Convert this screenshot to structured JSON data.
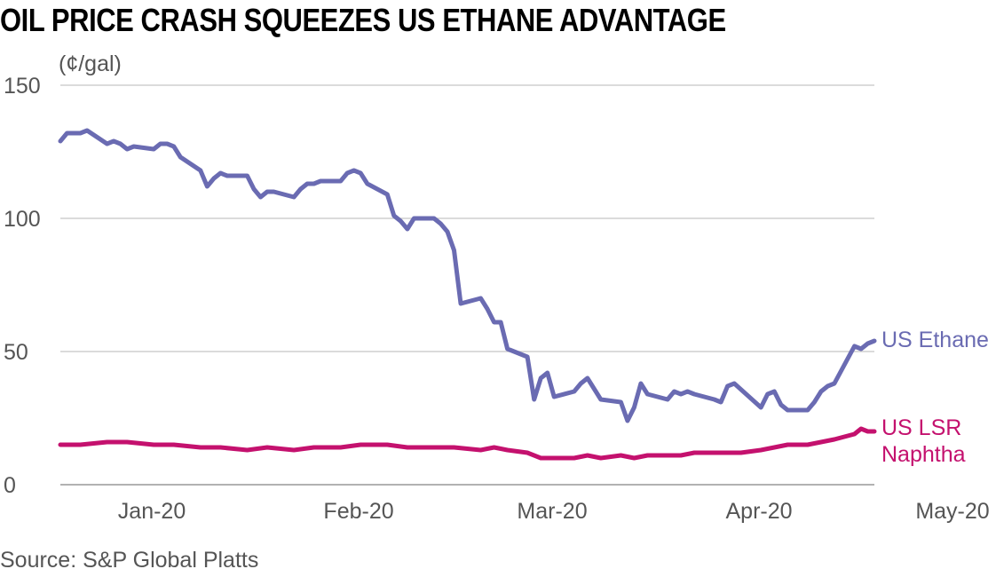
{
  "title": "OIL PRICE CRASH SQUEEZES US ETHANE ADVANTAGE",
  "unit_label": "(¢/gal)",
  "source": "Source: S&P Global Platts",
  "chart_data": {
    "type": "line",
    "title": "OIL PRICE CRASH SQUEEZES US ETHANE ADVANTAGE",
    "ylabel": "(¢/gal)",
    "xlabel": "",
    "ylim": [
      0,
      150
    ],
    "yticks": [
      0,
      50,
      100,
      150
    ],
    "xticks": [
      "Jan-20",
      "Feb-20",
      "Mar-20",
      "Apr-20",
      "May-20"
    ],
    "x_range": [
      "2019-12-30",
      "2020-04-30"
    ],
    "grid": true,
    "series": [
      {
        "name": "US Ethane",
        "color": "#6a6bb2",
        "x": [
          "2019-12-30",
          "2019-12-31",
          "2020-01-02",
          "2020-01-03",
          "2020-01-06",
          "2020-01-07",
          "2020-01-08",
          "2020-01-09",
          "2020-01-10",
          "2020-01-13",
          "2020-01-14",
          "2020-01-15",
          "2020-01-16",
          "2020-01-17",
          "2020-01-20",
          "2020-01-21",
          "2020-01-22",
          "2020-01-23",
          "2020-01-24",
          "2020-01-27",
          "2020-01-28",
          "2020-01-29",
          "2020-01-30",
          "2020-01-31",
          "2020-02-03",
          "2020-02-04",
          "2020-02-05",
          "2020-02-06",
          "2020-02-07",
          "2020-02-10",
          "2020-02-11",
          "2020-02-12",
          "2020-02-13",
          "2020-02-14",
          "2020-02-17",
          "2020-02-18",
          "2020-02-19",
          "2020-02-20",
          "2020-02-21",
          "2020-02-24",
          "2020-02-25",
          "2020-02-26",
          "2020-02-27",
          "2020-02-28",
          "2020-03-02",
          "2020-03-03",
          "2020-03-04",
          "2020-03-05",
          "2020-03-06",
          "2020-03-09",
          "2020-03-10",
          "2020-03-11",
          "2020-03-12",
          "2020-03-13",
          "2020-03-16",
          "2020-03-17",
          "2020-03-18",
          "2020-03-19",
          "2020-03-20",
          "2020-03-23",
          "2020-03-24",
          "2020-03-25",
          "2020-03-26",
          "2020-03-27",
          "2020-03-30",
          "2020-03-31",
          "2020-04-01",
          "2020-04-02",
          "2020-04-03",
          "2020-04-06",
          "2020-04-07",
          "2020-04-08",
          "2020-04-09",
          "2020-04-13",
          "2020-04-14",
          "2020-04-15",
          "2020-04-16",
          "2020-04-17",
          "2020-04-20",
          "2020-04-21",
          "2020-04-22",
          "2020-04-23",
          "2020-04-24",
          "2020-04-27",
          "2020-04-28",
          "2020-04-29",
          "2020-04-30"
        ],
        "values": [
          129,
          132,
          132,
          133,
          128,
          129,
          128,
          126,
          127,
          126,
          128,
          128,
          127,
          123,
          118,
          112,
          115,
          117,
          116,
          116,
          111,
          108,
          110,
          110,
          108,
          111,
          113,
          113,
          114,
          114,
          117,
          118,
          117,
          113,
          109,
          101,
          99,
          96,
          100,
          100,
          98,
          95,
          88,
          68,
          70,
          66,
          61,
          61,
          51,
          48,
          32,
          40,
          42,
          33,
          35,
          38,
          40,
          36,
          32,
          31,
          24,
          29,
          38,
          34,
          32,
          35,
          34,
          35,
          34,
          32,
          31,
          37,
          38,
          29,
          34,
          35,
          30,
          28,
          28,
          31,
          35,
          37,
          38,
          52,
          51,
          53,
          54
        ]
      },
      {
        "name": "US LSR Naphtha",
        "color": "#c4116e",
        "x": [
          "2019-12-30",
          "2020-01-02",
          "2020-01-06",
          "2020-01-09",
          "2020-01-13",
          "2020-01-16",
          "2020-01-20",
          "2020-01-23",
          "2020-01-27",
          "2020-01-30",
          "2020-02-03",
          "2020-02-06",
          "2020-02-10",
          "2020-02-13",
          "2020-02-17",
          "2020-02-20",
          "2020-02-24",
          "2020-02-27",
          "2020-03-02",
          "2020-03-04",
          "2020-03-06",
          "2020-03-09",
          "2020-03-11",
          "2020-03-13",
          "2020-03-16",
          "2020-03-18",
          "2020-03-20",
          "2020-03-23",
          "2020-03-25",
          "2020-03-27",
          "2020-03-30",
          "2020-04-01",
          "2020-04-03",
          "2020-04-06",
          "2020-04-08",
          "2020-04-10",
          "2020-04-13",
          "2020-04-15",
          "2020-04-17",
          "2020-04-20",
          "2020-04-22",
          "2020-04-24",
          "2020-04-27",
          "2020-04-28",
          "2020-04-29",
          "2020-04-30"
        ],
        "values": [
          15,
          15,
          16,
          16,
          15,
          15,
          14,
          14,
          13,
          14,
          13,
          14,
          14,
          15,
          15,
          14,
          14,
          14,
          13,
          14,
          13,
          12,
          10,
          10,
          10,
          11,
          10,
          11,
          10,
          11,
          11,
          11,
          12,
          12,
          12,
          12,
          13,
          14,
          15,
          15,
          16,
          17,
          19,
          21,
          20,
          20
        ]
      }
    ]
  }
}
